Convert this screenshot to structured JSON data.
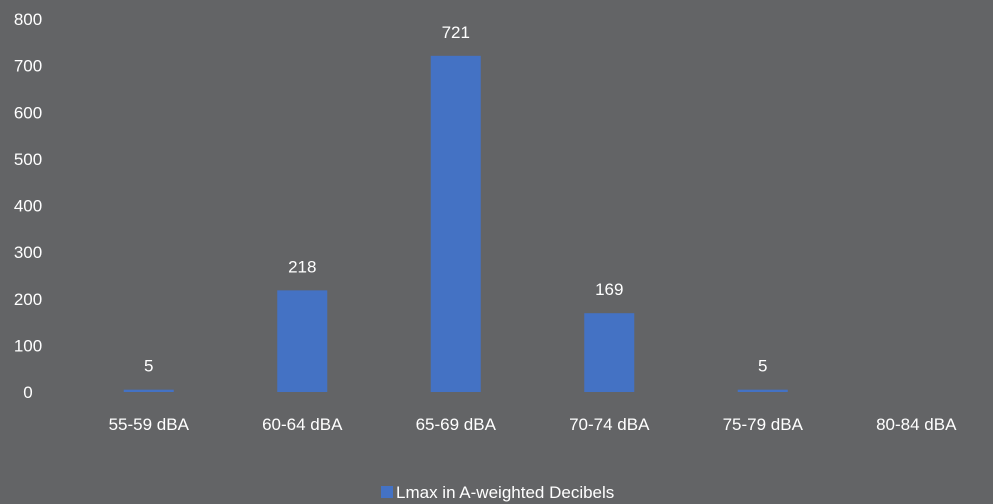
{
  "chart_data": {
    "type": "bar",
    "categories": [
      "55-59 dBA",
      "60-64 dBA",
      "65-69 dBA",
      "70-74 dBA",
      "75-79 dBA",
      "80-84 dBA"
    ],
    "series": [
      {
        "name": "Lmax in A-weighted Decibels",
        "values": [
          5,
          218,
          721,
          169,
          5,
          0
        ]
      }
    ],
    "data_labels": [
      "5",
      "218",
      "721",
      "169",
      "5",
      ""
    ],
    "yticks": [
      "0",
      "100",
      "200",
      "300",
      "400",
      "500",
      "600",
      "700",
      "800"
    ],
    "ylim": [
      0,
      800
    ],
    "grid": false,
    "legend_position": "bottom",
    "colors": {
      "background": "#636466",
      "bar": "#4472C4",
      "text": "#ffffff"
    }
  }
}
